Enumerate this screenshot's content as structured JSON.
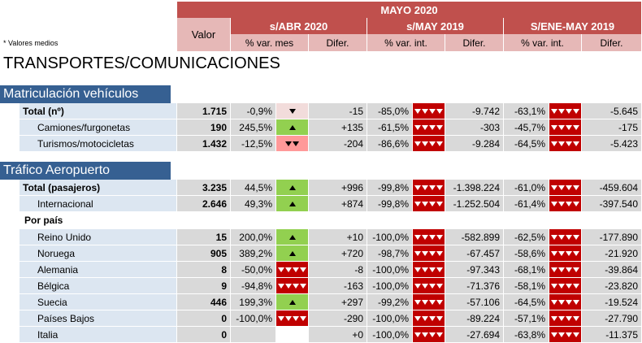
{
  "header": {
    "top_title": "MAYO 2020",
    "valor_label": "Valor",
    "groups": [
      "s/ABR 2020",
      "s/MAY 2019",
      "S/ENE-MAY 2019"
    ],
    "subcols": [
      "% var. mes",
      "Difer.",
      "% var. int.",
      "Difer.",
      "% var. int.",
      "Difer."
    ],
    "note": "* Valores medios"
  },
  "page_title": "TRANSPORTES/COMUNICACIONES",
  "colors": {
    "section": "#366092",
    "header": "#c0504d",
    "up": "#92d050",
    "down": "#c00000"
  },
  "sections": [
    {
      "title": "Matriculación vehículos",
      "rows": [
        {
          "label": "Total (nº)",
          "bold": true,
          "indent": false,
          "valor": "1.715",
          "pvm": "-0,9%",
          "ind1": "down-small",
          "dif1": "-15",
          "pvi1": "-85,0%",
          "ind2": "down4",
          "dif2": "-9.742",
          "pvi2": "-63,1%",
          "ind3": "down4",
          "dif3": "-5.645"
        },
        {
          "label": "Camiones/furgonetas",
          "bold": false,
          "indent": true,
          "valor": "190",
          "pvm": "245,5%",
          "ind1": "up",
          "dif1": "+135",
          "pvi1": "-61,5%",
          "ind2": "down4",
          "dif2": "-303",
          "pvi2": "-45,7%",
          "ind3": "down4",
          "dif3": "-175"
        },
        {
          "label": "Turismos/motocicletas",
          "bold": false,
          "indent": true,
          "valor": "1.432",
          "pvm": "-12,5%",
          "ind1": "down2",
          "dif1": "-204",
          "pvi1": "-86,6%",
          "ind2": "down4",
          "dif2": "-9.284",
          "pvi2": "-64,5%",
          "ind3": "down4",
          "dif3": "-5.423"
        }
      ]
    },
    {
      "title": "Tráfico Aeropuerto",
      "rows": [
        {
          "label": "Total (pasajeros)",
          "bold": true,
          "indent": false,
          "valor": "3.235",
          "pvm": "44,5%",
          "ind1": "up",
          "dif1": "+996",
          "pvi1": "-99,8%",
          "ind2": "down4",
          "dif2": "-1.398.224",
          "pvi2": "-61,0%",
          "ind3": "down4",
          "dif3": "-459.604"
        },
        {
          "label": "Internacional",
          "bold": false,
          "indent": true,
          "valor": "2.646",
          "pvm": "49,3%",
          "ind1": "up",
          "dif1": "+874",
          "pvi1": "-99,8%",
          "ind2": "down4",
          "dif2": "-1.252.504",
          "pvi2": "-61,4%",
          "ind3": "down4",
          "dif3": "-397.540"
        }
      ],
      "subhead": "Por país",
      "country_rows": [
        {
          "label": "Reino Unido",
          "valor": "15",
          "pvm": "200,0%",
          "ind1": "up",
          "dif1": "+10",
          "pvi1": "-100,0%",
          "ind2": "down4",
          "dif2": "-582.899",
          "pvi2": "-62,5%",
          "ind3": "down4",
          "dif3": "-177.890"
        },
        {
          "label": "Noruega",
          "valor": "905",
          "pvm": "389,2%",
          "ind1": "up",
          "dif1": "+720",
          "pvi1": "-98,7%",
          "ind2": "down4",
          "dif2": "-67.457",
          "pvi2": "-58,6%",
          "ind3": "down4",
          "dif3": "-21.920"
        },
        {
          "label": "Alemania",
          "valor": "8",
          "pvm": "-50,0%",
          "ind1": "down4",
          "dif1": "-8",
          "pvi1": "-100,0%",
          "ind2": "down4",
          "dif2": "-97.343",
          "pvi2": "-68,1%",
          "ind3": "down4",
          "dif3": "-39.864"
        },
        {
          "label": "Bélgica",
          "valor": "9",
          "pvm": "-94,8%",
          "ind1": "down4",
          "dif1": "-163",
          "pvi1": "-100,0%",
          "ind2": "down4",
          "dif2": "-71.376",
          "pvi2": "-58,1%",
          "ind3": "down4",
          "dif3": "-23.820"
        },
        {
          "label": "Suecia",
          "valor": "446",
          "pvm": "199,3%",
          "ind1": "up",
          "dif1": "+297",
          "pvi1": "-99,2%",
          "ind2": "down4",
          "dif2": "-57.106",
          "pvi2": "-64,5%",
          "ind3": "down4",
          "dif3": "-19.524"
        },
        {
          "label": "Países Bajos",
          "valor": "0",
          "pvm": "-100,0%",
          "ind1": "down4",
          "dif1": "-290",
          "pvi1": "-100,0%",
          "ind2": "down4",
          "dif2": "-89.224",
          "pvi2": "-57,1%",
          "ind3": "down4",
          "dif3": "-27.790"
        },
        {
          "label": "Italia",
          "valor": "0",
          "pvm": "",
          "ind1": "blank",
          "dif1": "+0",
          "pvi1": "-100,0%",
          "ind2": "down4",
          "dif2": "-27.694",
          "pvi2": "-63,8%",
          "ind3": "down4",
          "dif3": "-11.375"
        }
      ]
    }
  ]
}
